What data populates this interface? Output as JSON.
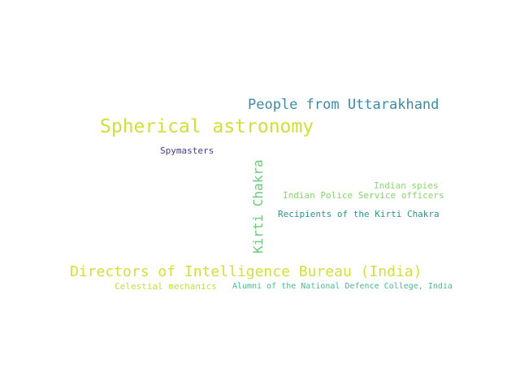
{
  "words": [
    {
      "text": "People from Uttarakhand",
      "color": "#3b8aa6"
    },
    {
      "text": "Spherical astronomy",
      "color": "#cfe03a"
    },
    {
      "text": "Spymasters",
      "color": "#453a86"
    },
    {
      "text": "Kirti Chakra",
      "color": "#6cc87a"
    },
    {
      "text": "Indian spies",
      "color": "#8cd973"
    },
    {
      "text": "Indian Police Service officers",
      "color": "#86d46c"
    },
    {
      "text": "Recipients of the Kirti Chakra",
      "color": "#2a968b"
    },
    {
      "text": "Directors of Intelligence Bureau (India)",
      "color": "#d3e03b"
    },
    {
      "text": "Celestial mechanics",
      "color": "#bfe04a"
    },
    {
      "text": "Alumni of the National Defence College, India",
      "color": "#3fbf8a"
    }
  ]
}
